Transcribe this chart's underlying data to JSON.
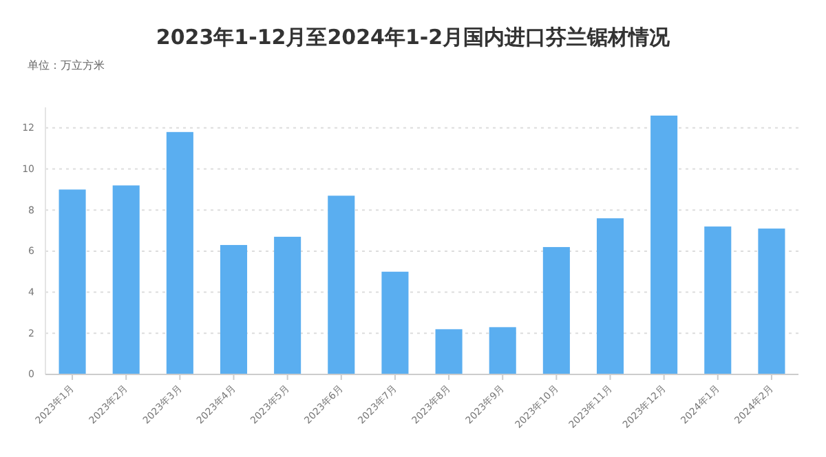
{
  "chart_data": {
    "type": "bar",
    "title": "2023年1-12月至2024年1-2月国内进口芬兰锯材情况",
    "subtitle": "单位：万立方米",
    "categories": [
      "2023年1月",
      "2023年2月",
      "2023年3月",
      "2023年4月",
      "2023年5月",
      "2023年6月",
      "2023年7月",
      "2023年8月",
      "2023年9月",
      "2023年10月",
      "2023年11月",
      "2023年12月",
      "2024年1月",
      "2024年2月"
    ],
    "values": [
      9.0,
      9.2,
      11.8,
      6.3,
      6.7,
      8.7,
      5.0,
      2.2,
      2.3,
      6.2,
      7.6,
      12.6,
      7.2,
      7.1
    ],
    "color": "#5aaef0",
    "ylim": [
      0,
      13
    ],
    "yticks": [
      0,
      2,
      4,
      6,
      8,
      10,
      12
    ],
    "grid": "y"
  }
}
